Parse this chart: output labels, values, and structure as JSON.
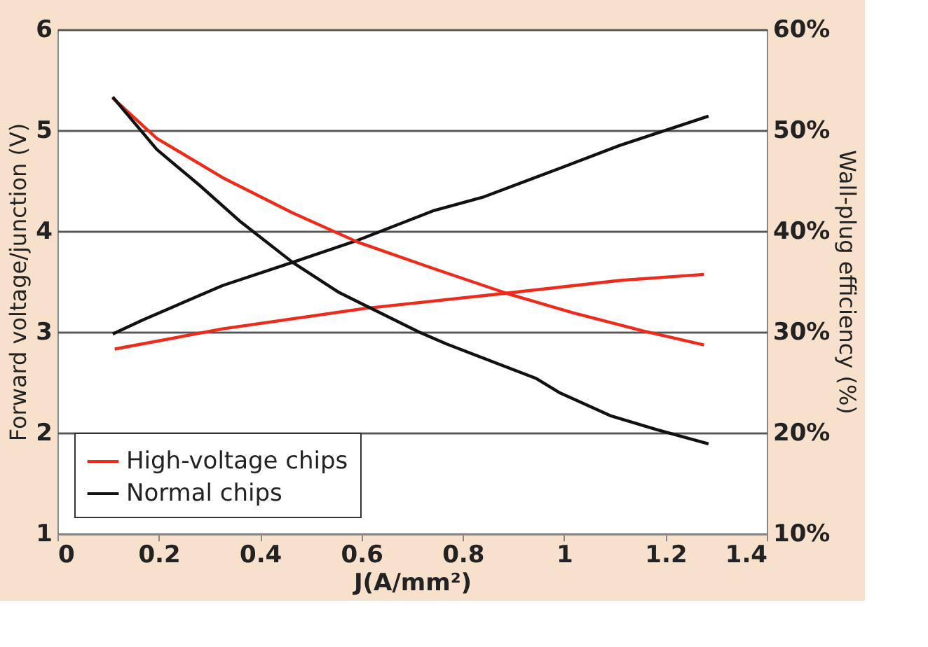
{
  "chart_data": {
    "type": "line",
    "xlabel": "J(A/mm²)",
    "ylabel": "Forward voltage/junction (V)",
    "y2label": "Wall-plug efficiency (%)",
    "xlim": [
      0,
      1.4
    ],
    "xticks": [
      0,
      0.2,
      0.4,
      0.6,
      0.8,
      1,
      1.2,
      1.4
    ],
    "ylim": [
      1,
      6
    ],
    "yticks": [
      1,
      2,
      3,
      4,
      5,
      6
    ],
    "y2lim": [
      10,
      60
    ],
    "y2ticks": [
      {
        "value": 10,
        "label": "10%"
      },
      {
        "value": 20,
        "label": "20%"
      },
      {
        "value": 30,
        "label": "30%"
      },
      {
        "value": 40,
        "label": "40%"
      },
      {
        "value": 50,
        "label": "50%"
      },
      {
        "value": 60,
        "label": "60%"
      }
    ],
    "grid": "y",
    "legend": "bottom left",
    "line_style": "solid",
    "marker": "none",
    "series": [
      {
        "name": "High-voltage chips",
        "color": "#ee2a1b",
        "x": [
          0.113,
          0.326,
          0.602,
          0.879,
          1.11,
          1.276
        ],
        "values": [
          2.83,
          3.03,
          3.23,
          3.38,
          3.51,
          3.57
        ]
      },
      {
        "name": "Normal chips",
        "color": "#111111",
        "x": [
          0.109,
          0.169,
          0.326,
          0.464,
          0.593,
          0.741,
          0.842,
          0.99,
          1.11,
          1.285
        ],
        "values": [
          2.98,
          3.12,
          3.46,
          3.69,
          3.91,
          4.2,
          4.34,
          4.62,
          4.85,
          5.14
        ]
      },
      {
        "color": "#ee2a1b",
        "axis": "y2",
        "x": [
          0.109,
          0.196,
          0.326,
          0.464,
          0.593,
          0.741,
          0.888,
          1.017,
          1.156,
          1.276
        ],
        "values": [
          53.2,
          49.2,
          45.3,
          41.8,
          38.9,
          36.3,
          33.8,
          31.9,
          30.1,
          28.7
        ]
      },
      {
        "color": "#111111",
        "axis": "y2",
        "x": [
          0.109,
          0.196,
          0.279,
          0.362,
          0.464,
          0.556,
          0.713,
          0.768,
          0.944,
          0.99,
          1.091,
          1.183,
          1.285
        ],
        "values": [
          53.3,
          48.1,
          44.6,
          40.9,
          36.9,
          33.9,
          30.0,
          28.8,
          25.4,
          24.0,
          21.7,
          20.3,
          18.9
        ]
      }
    ]
  }
}
